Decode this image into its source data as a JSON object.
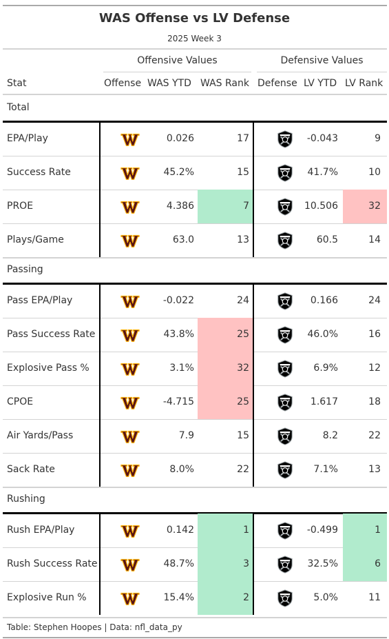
{
  "chart_data": {
    "type": "table",
    "title": "WAS Offense vs LV Defense",
    "subtitle": "2025 Week 3",
    "spanners": [
      "Offensive Values",
      "Defensive Values"
    ],
    "columns": [
      "Stat",
      "Offense",
      "WAS YTD",
      "WAS Rank",
      "Defense",
      "LV YTD",
      "LV Rank"
    ],
    "offense_logo": "washington-commanders-logo",
    "defense_logo": "las-vegas-raiders-logo",
    "colors": {
      "good": "#b1ebcd",
      "bad": "#ffc2c2",
      "commanders_burgundy": "#5a1414",
      "commanders_gold": "#ffb612",
      "raiders_black": "#000000",
      "raiders_silver": "#a5acaf"
    },
    "groups": [
      {
        "name": "Total",
        "rows": [
          {
            "stat": "EPA/Play",
            "was_ytd": "0.026",
            "was_rank": 17,
            "was_hl": "",
            "lv_ytd": "-0.043",
            "lv_rank": 9,
            "lv_hl": ""
          },
          {
            "stat": "Success Rate",
            "was_ytd": "45.2%",
            "was_rank": 15,
            "was_hl": "",
            "lv_ytd": "41.7%",
            "lv_rank": 10,
            "lv_hl": ""
          },
          {
            "stat": "PROE",
            "was_ytd": "4.386",
            "was_rank": 7,
            "was_hl": "good",
            "lv_ytd": "10.506",
            "lv_rank": 32,
            "lv_hl": "bad"
          },
          {
            "stat": "Plays/Game",
            "was_ytd": "63.0",
            "was_rank": 13,
            "was_hl": "",
            "lv_ytd": "60.5",
            "lv_rank": 14,
            "lv_hl": ""
          }
        ]
      },
      {
        "name": "Passing",
        "rows": [
          {
            "stat": "Pass EPA/Play",
            "was_ytd": "-0.022",
            "was_rank": 24,
            "was_hl": "",
            "lv_ytd": "0.166",
            "lv_rank": 24,
            "lv_hl": ""
          },
          {
            "stat": "Pass Success Rate",
            "was_ytd": "43.8%",
            "was_rank": 25,
            "was_hl": "bad",
            "lv_ytd": "46.0%",
            "lv_rank": 16,
            "lv_hl": ""
          },
          {
            "stat": "Explosive Pass %",
            "was_ytd": "3.1%",
            "was_rank": 32,
            "was_hl": "bad",
            "lv_ytd": "6.9%",
            "lv_rank": 12,
            "lv_hl": ""
          },
          {
            "stat": "CPOE",
            "was_ytd": "-4.715",
            "was_rank": 25,
            "was_hl": "bad",
            "lv_ytd": "1.617",
            "lv_rank": 18,
            "lv_hl": ""
          },
          {
            "stat": "Air Yards/Pass",
            "was_ytd": "7.9",
            "was_rank": 15,
            "was_hl": "",
            "lv_ytd": "8.2",
            "lv_rank": 22,
            "lv_hl": ""
          },
          {
            "stat": "Sack Rate",
            "was_ytd": "8.0%",
            "was_rank": 22,
            "was_hl": "",
            "lv_ytd": "7.1%",
            "lv_rank": 13,
            "lv_hl": ""
          }
        ]
      },
      {
        "name": "Rushing",
        "rows": [
          {
            "stat": "Rush EPA/Play",
            "was_ytd": "0.142",
            "was_rank": 1,
            "was_hl": "good",
            "lv_ytd": "-0.499",
            "lv_rank": 1,
            "lv_hl": "good"
          },
          {
            "stat": "Rush Success Rate",
            "was_ytd": "48.7%",
            "was_rank": 3,
            "was_hl": "good",
            "lv_ytd": "32.5%",
            "lv_rank": 6,
            "lv_hl": "good"
          },
          {
            "stat": "Explosive Run %",
            "was_ytd": "15.4%",
            "was_rank": 2,
            "was_hl": "good",
            "lv_ytd": "5.0%",
            "lv_rank": 11,
            "lv_hl": ""
          }
        ]
      }
    ],
    "source_note": "Table: Stephen Hoopes | Data: nfl_data_py"
  }
}
